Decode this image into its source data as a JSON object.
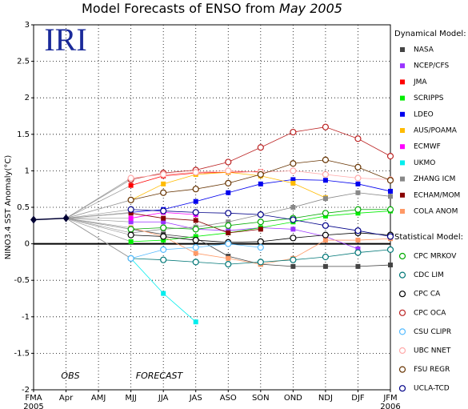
{
  "chart_data": {
    "type": "line",
    "title": "Model Forecasts of ENSO from",
    "title_date": "May 2005",
    "logo": "IRI",
    "y_label": "NINO3.4 SST Anomaly(°C)",
    "categories": [
      "FMA",
      "Apr",
      "AMJ",
      "MJJ",
      "JJA",
      "JAS",
      "ASO",
      "SON",
      "OND",
      "NDJ",
      "DJF",
      "JFM"
    ],
    "start_year": "2005",
    "end_year": "2006",
    "annotations": [
      "OBS",
      "FORECAST"
    ],
    "ylim": [
      -2,
      3
    ],
    "yticks": [
      -2,
      -1.5,
      -1,
      -0.5,
      0,
      0.5,
      1,
      1.5,
      2,
      2.5,
      3
    ],
    "grid": true,
    "observed": {
      "color": "#000033",
      "values": [
        0.33,
        0.35,
        null,
        null,
        null,
        null,
        null,
        null,
        null,
        null,
        null,
        null
      ]
    },
    "legend_groups": [
      {
        "title": "Dynamical Model:",
        "marker": "square"
      },
      {
        "title": "Statistical Model:",
        "marker": "circle"
      }
    ],
    "series": [
      {
        "name": "NASA",
        "group": 0,
        "color": "#444444",
        "values": [
          null,
          null,
          null,
          0.2,
          0.13,
          0.08,
          -0.17,
          -0.28,
          -0.31,
          -0.31,
          -0.31,
          -0.29
        ]
      },
      {
        "name": "NCEP/CFS",
        "group": 0,
        "color": "#9933ff",
        "values": [
          null,
          null,
          null,
          0.3,
          0.3,
          0.2,
          0.18,
          0.22,
          0.2,
          0.1,
          -0.07,
          null
        ]
      },
      {
        "name": "JMA",
        "group": 0,
        "color": "#ff0000",
        "values": [
          null,
          null,
          null,
          0.8,
          0.93,
          0.97,
          0.98,
          0.99,
          null,
          null,
          null,
          null
        ]
      },
      {
        "name": "SCRIPPS",
        "group": 0,
        "color": "#00ee00",
        "values": [
          null,
          null,
          null,
          0.03,
          0.05,
          0.1,
          0.15,
          0.22,
          0.3,
          0.38,
          0.42,
          0.45
        ]
      },
      {
        "name": "LDEO",
        "group": 0,
        "color": "#0000ee",
        "values": [
          null,
          null,
          null,
          0.43,
          0.47,
          0.58,
          0.7,
          0.82,
          0.88,
          0.87,
          0.82,
          0.72
        ]
      },
      {
        "name": "AUS/POAMA",
        "group": 0,
        "color": "#ffbb00",
        "values": [
          null,
          null,
          null,
          0.6,
          0.82,
          0.95,
          0.98,
          0.93,
          0.83,
          0.63,
          null,
          null
        ]
      },
      {
        "name": "ECMWF",
        "group": 0,
        "color": "#ff00ff",
        "values": [
          null,
          null,
          null,
          0.35,
          0.43,
          0.4,
          null,
          null,
          null,
          null,
          null,
          null
        ]
      },
      {
        "name": "UKMO",
        "group": 0,
        "color": "#00eeee",
        "values": [
          null,
          null,
          null,
          -0.2,
          -0.68,
          -1.07,
          null,
          null,
          null,
          null,
          null,
          null
        ]
      },
      {
        "name": "ZHANG ICM",
        "group": 0,
        "color": "#888888",
        "values": [
          null,
          null,
          null,
          0.15,
          0.2,
          0.23,
          0.3,
          0.4,
          0.5,
          0.62,
          0.7,
          0.65
        ]
      },
      {
        "name": "ECHAM/MOM",
        "group": 0,
        "color": "#880000",
        "values": [
          null,
          null,
          null,
          0.42,
          0.35,
          0.32,
          0.15,
          0.2,
          null,
          null,
          null,
          null
        ]
      },
      {
        "name": "COLA ANOM",
        "group": 0,
        "color": "#ff9966",
        "values": [
          null,
          null,
          null,
          0.22,
          0.1,
          -0.13,
          -0.2,
          -0.28,
          -0.2,
          0.05,
          0.05,
          0.07
        ]
      },
      {
        "name": "CPC MRKOV",
        "group": 1,
        "color": "#00aa00",
        "values": [
          null,
          null,
          null,
          0.2,
          0.22,
          0.2,
          0.25,
          0.3,
          0.35,
          0.42,
          0.47,
          0.47
        ]
      },
      {
        "name": "CDC LIM",
        "group": 1,
        "color": "#007777",
        "values": [
          null,
          null,
          null,
          -0.2,
          -0.22,
          -0.25,
          -0.28,
          -0.25,
          -0.22,
          -0.18,
          -0.12,
          -0.08
        ]
      },
      {
        "name": "CPC CA",
        "group": 1,
        "color": "#000000",
        "values": [
          null,
          null,
          null,
          0.12,
          0.1,
          0.05,
          0.02,
          0.03,
          0.08,
          0.12,
          0.15,
          0.12
        ]
      },
      {
        "name": "CPC OCA",
        "group": 1,
        "color": "#bb2222",
        "values": [
          null,
          null,
          null,
          0.88,
          0.97,
          1.01,
          1.12,
          1.32,
          1.53,
          1.6,
          1.44,
          1.2
        ]
      },
      {
        "name": "CSU CLIPR",
        "group": 1,
        "color": "#55bbff",
        "values": [
          null,
          null,
          null,
          -0.2,
          -0.08,
          -0.05,
          0.0,
          -0.05,
          null,
          null,
          null,
          null
        ]
      },
      {
        "name": "UBC NNET",
        "group": 1,
        "color": "#ffaaaa",
        "values": [
          null,
          null,
          null,
          0.9,
          0.95,
          0.98,
          1.0,
          0.98,
          1.0,
          0.95,
          0.9,
          0.88
        ]
      },
      {
        "name": "FSU REGR",
        "group": 1,
        "color": "#663300",
        "values": [
          null,
          null,
          null,
          0.6,
          0.7,
          0.75,
          0.83,
          0.95,
          1.1,
          1.15,
          1.05,
          0.87
        ]
      },
      {
        "name": "UCLA-TCD",
        "group": 1,
        "color": "#000088",
        "values": [
          null,
          null,
          null,
          0.47,
          0.45,
          0.43,
          0.42,
          0.4,
          0.33,
          0.25,
          0.18,
          0.1
        ]
      }
    ]
  }
}
